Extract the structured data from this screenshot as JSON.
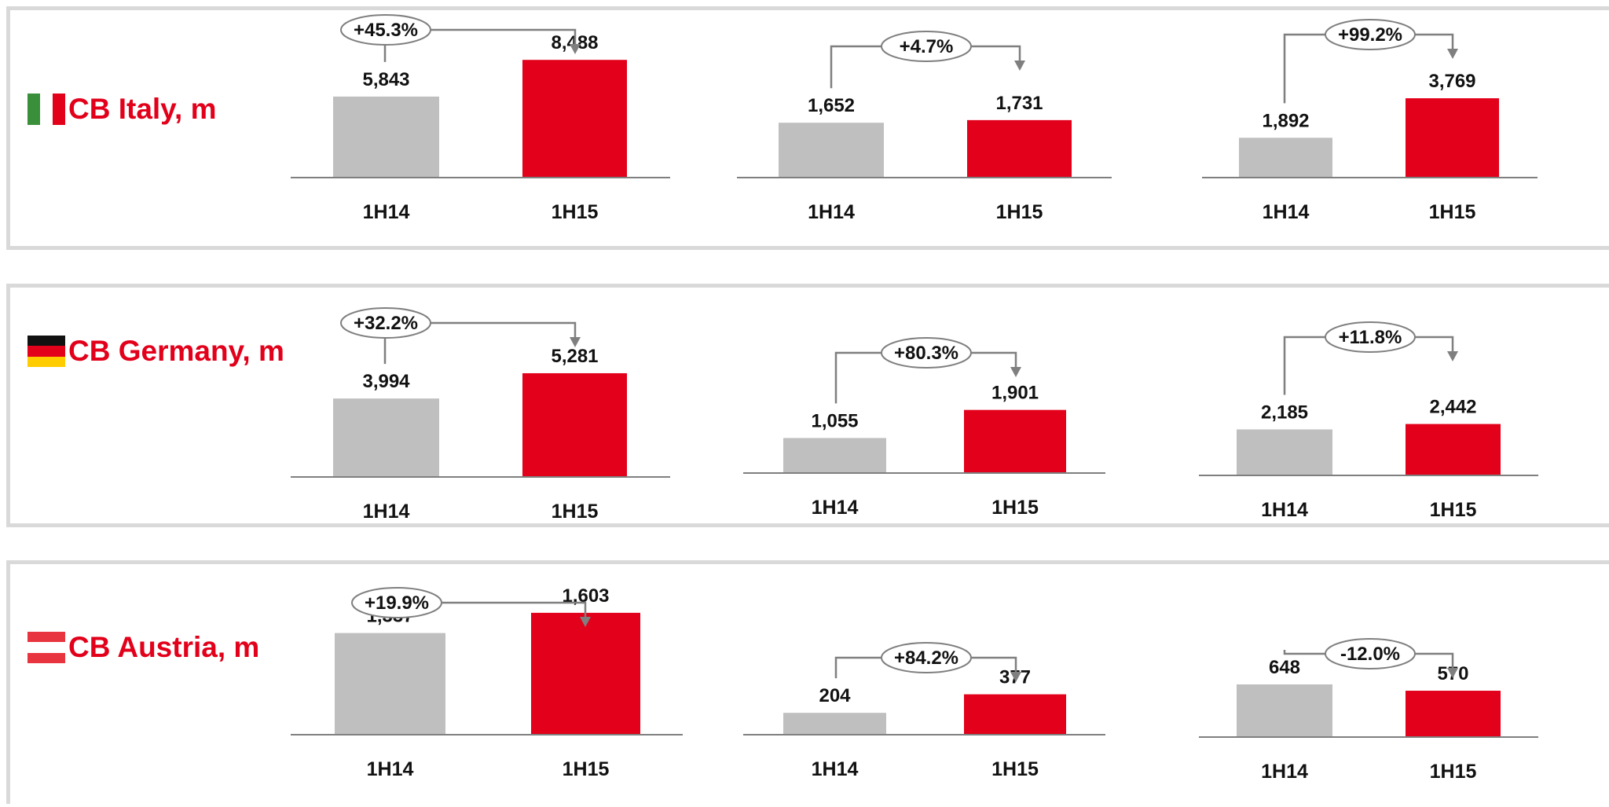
{
  "colors": {
    "prev": "#bfbfbf",
    "curr": "#e2001a",
    "axis": "#7f7f7f",
    "title": "#e2001a"
  },
  "panels": [
    {
      "title": "CB Italy, m",
      "flag": "italy-flag-icon"
    },
    {
      "title": "CB Germany, m",
      "flag": "germany-flag-icon"
    },
    {
      "title": "CB Austria, m",
      "flag": "austria-flag-icon"
    }
  ],
  "chart_data": [
    {
      "type": "bar",
      "region": "CB Italy, m",
      "categories": [
        "1H14",
        "1H15"
      ],
      "values": [
        5843,
        8488
      ],
      "value_labels": [
        "5,843",
        "8,488"
      ],
      "change_label": "+45.3%"
    },
    {
      "type": "bar",
      "region": "CB Italy, m",
      "categories": [
        "1H14",
        "1H15"
      ],
      "values": [
        1652,
        1731
      ],
      "value_labels": [
        "1,652",
        "1,731"
      ],
      "change_label": "+4.7%"
    },
    {
      "type": "bar",
      "region": "CB Italy, m",
      "categories": [
        "1H14",
        "1H15"
      ],
      "values": [
        1892,
        3769
      ],
      "value_labels": [
        "1,892",
        "3,769"
      ],
      "change_label": "+99.2%"
    },
    {
      "type": "bar",
      "region": "CB Germany, m",
      "categories": [
        "1H14",
        "1H15"
      ],
      "values": [
        3994,
        5281
      ],
      "value_labels": [
        "3,994",
        "5,281"
      ],
      "change_label": "+32.2%"
    },
    {
      "type": "bar",
      "region": "CB Germany, m",
      "categories": [
        "1H14",
        "1H15"
      ],
      "values": [
        1055,
        1901
      ],
      "value_labels": [
        "1,055",
        "1,901"
      ],
      "change_label": "+80.3%"
    },
    {
      "type": "bar",
      "region": "CB Germany, m",
      "categories": [
        "1H14",
        "1H15"
      ],
      "values": [
        2185,
        2442
      ],
      "value_labels": [
        "2,185",
        "2,442"
      ],
      "change_label": "+11.8%"
    },
    {
      "type": "bar",
      "region": "CB Austria, m",
      "categories": [
        "1H14",
        "1H15"
      ],
      "values": [
        1337,
        1603
      ],
      "value_labels": [
        "1,337",
        "1,603"
      ],
      "change_label": "+19.9%"
    },
    {
      "type": "bar",
      "region": "CB Austria, m",
      "categories": [
        "1H14",
        "1H15"
      ],
      "values": [
        204,
        377
      ],
      "value_labels": [
        "204",
        "377"
      ],
      "change_label": "+84.2%"
    },
    {
      "type": "bar",
      "region": "CB Austria, m",
      "categories": [
        "1H14",
        "1H15"
      ],
      "values": [
        648,
        570
      ],
      "value_labels": [
        "648",
        "570"
      ],
      "change_label": "-12.0%"
    }
  ]
}
